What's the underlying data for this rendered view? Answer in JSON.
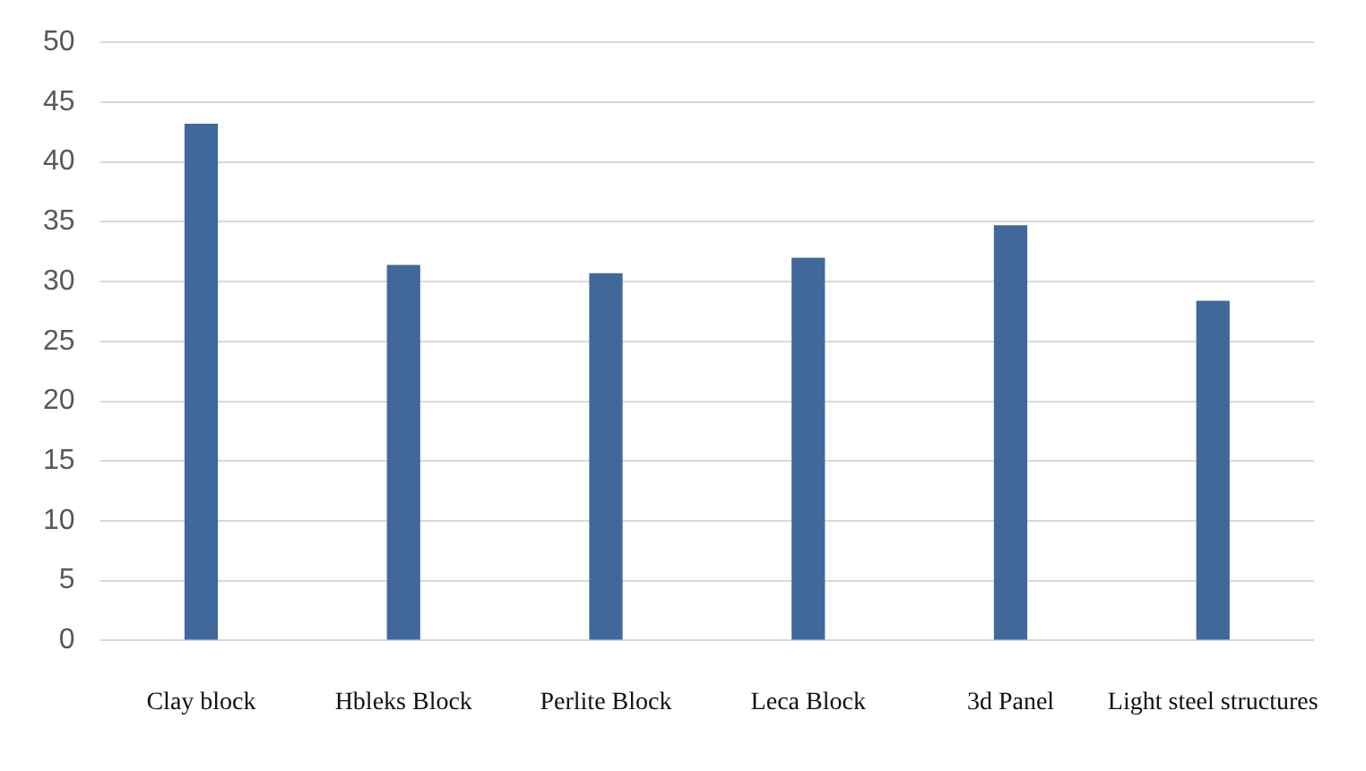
{
  "chart_data": {
    "type": "bar",
    "categories": [
      "Clay block",
      "Hbleks Block",
      "Perlite Block",
      "Leca Block",
      "3d Panel",
      "Light steel structures"
    ],
    "values": [
      43.2,
      31.4,
      30.7,
      32.0,
      34.7,
      28.4
    ],
    "color": "#41689a",
    "ylim": [
      0,
      50
    ],
    "yticks": [
      0,
      5,
      10,
      15,
      20,
      25,
      30,
      35,
      40,
      45,
      50
    ],
    "grid": "y"
  }
}
